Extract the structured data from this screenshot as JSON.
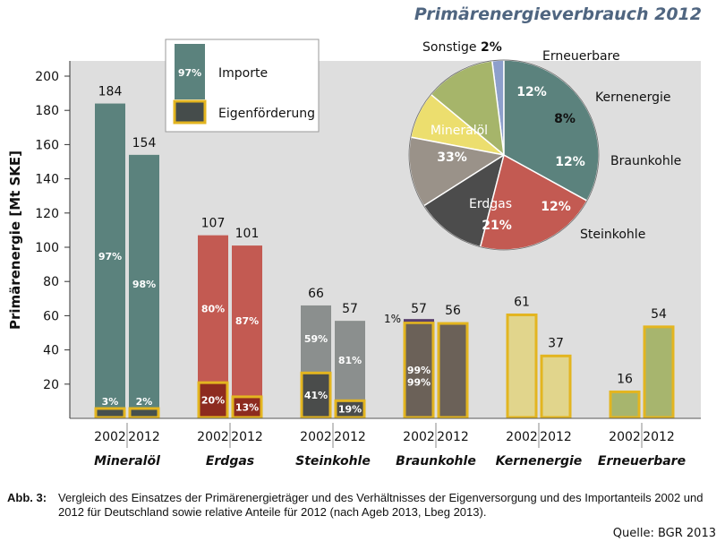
{
  "chart_data": [
    {
      "type": "bar",
      "title": "Primärenergieverbrauch 2012",
      "ylabel": "Primärenergie [Mt SKE]",
      "ylim": [
        0,
        200
      ],
      "yticks": [
        "20",
        "40",
        "60",
        "80",
        "100",
        "120",
        "140",
        "160",
        "180",
        "200"
      ],
      "grid": false,
      "legend_position": "top-left",
      "legend": [
        {
          "label": "Importe",
          "share_label": "97%",
          "color": "#5b827d"
        },
        {
          "label": "Eigenförderung",
          "color": "#454c4b",
          "border": "#e3b520"
        }
      ],
      "years": [
        "2002",
        "2012"
      ],
      "categories": [
        {
          "name": "Mineralöl",
          "color": "#5b827d",
          "domestic_color": "#46504e",
          "bars": [
            {
              "year": "2002",
              "total": 184,
              "total_label": "184",
              "import_share": 97,
              "import_label": "97%",
              "domestic_share": 3,
              "domestic_label": "3%"
            },
            {
              "year": "2012",
              "total": 154,
              "total_label": "154",
              "import_share": 98,
              "import_label": "98%",
              "domestic_share": 2,
              "domestic_label": "2%"
            }
          ]
        },
        {
          "name": "Erdgas",
          "color": "#c35a52",
          "domestic_color": "#8d2b1f",
          "bars": [
            {
              "year": "2002",
              "total": 107,
              "total_label": "107",
              "import_share": 80,
              "import_label": "80%",
              "domestic_share": 20,
              "domestic_label": "20%"
            },
            {
              "year": "2012",
              "total": 101,
              "total_label": "101",
              "import_share": 87,
              "import_label": "87%",
              "domestic_share": 13,
              "domestic_label": "13%"
            }
          ]
        },
        {
          "name": "Steinkohle",
          "color": "#8b8f8e",
          "domestic_color": "#4a4c4b",
          "bars": [
            {
              "year": "2002",
              "total": 66,
              "total_label": "66",
              "import_share": 59,
              "import_label": "59%",
              "domestic_share": 41,
              "domestic_label": "41%"
            },
            {
              "year": "2012",
              "total": 57,
              "total_label": "57",
              "import_share": 81,
              "import_label": "81%",
              "domestic_share": 19,
              "domestic_label": "19%"
            }
          ]
        },
        {
          "name": "Braunkohle",
          "color": "#6b6158",
          "domestic_color": "#6b6158",
          "bars": [
            {
              "year": "2002",
              "total": 57,
              "total_label": "57",
              "import_share": 1,
              "import_label": "1%",
              "domestic_share": 99,
              "domestic_label": "99%"
            },
            {
              "year": "2012",
              "total": 56,
              "total_label": "56",
              "import_share": 0,
              "import_label": "",
              "domestic_share": 100,
              "domestic_label": ""
            }
          ]
        },
        {
          "name": "Kernenergie",
          "color": "#e1d58c",
          "domestic_color": "#e1d58c",
          "bars": [
            {
              "year": "2002",
              "total": 61,
              "total_label": "61",
              "import_share": 0,
              "import_label": "",
              "domestic_share": 100,
              "domestic_label": ""
            },
            {
              "year": "2012",
              "total": 37,
              "total_label": "37",
              "import_share": 0,
              "import_label": "",
              "domestic_share": 100,
              "domestic_label": ""
            }
          ]
        },
        {
          "name": "Erneuerbare",
          "color": "#a7b56e",
          "domestic_color": "#a7b56e",
          "bars": [
            {
              "year": "2002",
              "total": 16,
              "total_label": "16",
              "import_share": 0,
              "import_label": "",
              "domestic_share": 100,
              "domestic_label": ""
            },
            {
              "year": "2012",
              "total": 54,
              "total_label": "54",
              "import_share": 0,
              "import_label": "",
              "domestic_share": 100,
              "domestic_label": ""
            }
          ]
        }
      ]
    },
    {
      "type": "pie",
      "slices": [
        {
          "label": "Mineralöl",
          "value": 33,
          "value_label": "33%",
          "color": "#5b827d"
        },
        {
          "label": "Erdgas",
          "value": 21,
          "value_label": "21%",
          "color": "#c35a52"
        },
        {
          "label": "Steinkohle",
          "value": 12,
          "value_label": "12%",
          "color": "#4c4c4c"
        },
        {
          "label": "Braunkohle",
          "value": 12,
          "value_label": "12%",
          "color": "#9a9289"
        },
        {
          "label": "Kernenergie",
          "value": 8,
          "value_label": "8%",
          "color": "#ecde6e"
        },
        {
          "label": "Erneuerbare",
          "value": 12,
          "value_label": "12%",
          "color": "#a6b56a"
        },
        {
          "label": "Sonstige",
          "value": 2,
          "value_label": "2%",
          "color": "#8d9fcb"
        }
      ]
    }
  ],
  "caption": {
    "label": "Abb. 3:",
    "text": "Vergleich des Einsatzes der Primärenergieträger und des Verhältnisses der Eigenversorgung und des Importanteils 2002 und 2012 für Deutschland sowie relative Anteile für 2012 (nach Ageb 2013, Lbeg 2013)."
  },
  "source": "Quelle: BGR 2013",
  "colors": {
    "title": "#4f6580",
    "plot_bg": "#dedede",
    "bar_border": "#e3b520"
  }
}
